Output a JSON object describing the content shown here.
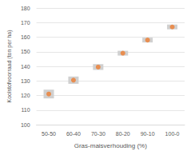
{
  "chart_data": {
    "type": "scatter",
    "x_label": "Gras-maisverhouding (%)",
    "y_label": "Koolstofvoorraad (ton per ha)",
    "categories": [
      "50-50",
      "60-40",
      "70-30",
      "80-20",
      "90-10",
      "100-0"
    ],
    "values": [
      121,
      130.5,
      139.5,
      149,
      158,
      167
    ],
    "errors": [
      3,
      2.5,
      2,
      1.5,
      1,
      0.5
    ],
    "color": "#ed7d31",
    "marker": "circle",
    "ylim": [
      100,
      180
    ],
    "yticks": [
      100,
      110,
      120,
      130,
      140,
      150,
      160,
      170,
      180
    ],
    "grid": true
  }
}
